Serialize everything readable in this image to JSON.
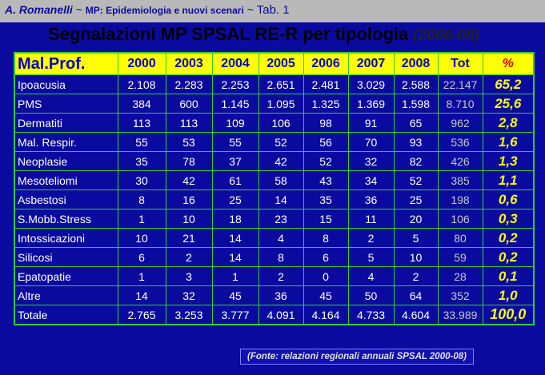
{
  "header": {
    "author": "A. Romanelli",
    "sep1": " ~ ",
    "subtitle": "MP: Epidemiologia  e nuovi scenari",
    "sep2": " ~ ",
    "tab": "Tab. 1"
  },
  "title": {
    "main": "Segnalazioni MP SPSAL RE-R per tipologia ",
    "years": "(2000-08)"
  },
  "table": {
    "headers": [
      "Mal.Prof.",
      "2000",
      "2003",
      "2004",
      "2005",
      "2006",
      "2007",
      "2008",
      "Tot",
      "%"
    ],
    "rows": [
      {
        "label": "Ipoacusia",
        "values": [
          "2.108",
          "2.283",
          "2.253",
          "2.651",
          "2.481",
          "3.029",
          "2.588"
        ],
        "tot": "22.147",
        "pct": "65,2"
      },
      {
        "label": "PMS",
        "values": [
          "384",
          "600",
          "1.145",
          "1.095",
          "1.325",
          "1.369",
          "1.598"
        ],
        "tot": "8.710",
        "pct": "25,6"
      },
      {
        "label": "Dermatiti",
        "values": [
          "113",
          "113",
          "109",
          "106",
          "98",
          "91",
          "65"
        ],
        "tot": "962",
        "pct": "2,8"
      },
      {
        "label": "Mal. Respir.",
        "values": [
          "55",
          "53",
          "55",
          "52",
          "56",
          "70",
          "93"
        ],
        "tot": "536",
        "pct": "1,6"
      },
      {
        "label": "Neoplasie",
        "values": [
          "35",
          "78",
          "37",
          "42",
          "52",
          "32",
          "82"
        ],
        "tot": "426",
        "pct": "1,3"
      },
      {
        "label": "Mesoteliomi",
        "values": [
          "30",
          "42",
          "61",
          "58",
          "43",
          "34",
          "52"
        ],
        "tot": "385",
        "pct": "1,1"
      },
      {
        "label": "Asbestosi",
        "values": [
          "8",
          "16",
          "25",
          "14",
          "35",
          "36",
          "25"
        ],
        "tot": "198",
        "pct": "0,6"
      },
      {
        "label": "S.Mobb.Stress",
        "values": [
          "1",
          "10",
          "18",
          "23",
          "15",
          "11",
          "20"
        ],
        "tot": "106",
        "pct": "0,3"
      },
      {
        "label": "Intossicazioni",
        "values": [
          "10",
          "21",
          "14",
          "4",
          "8",
          "2",
          "5"
        ],
        "tot": "80",
        "pct": "0,2"
      },
      {
        "label": "Silicosi",
        "values": [
          "6",
          "2",
          "14",
          "8",
          "6",
          "5",
          "10"
        ],
        "tot": "59",
        "pct": "0,2"
      },
      {
        "label": "Epatopatie",
        "values": [
          "1",
          "3",
          "1",
          "2",
          "0",
          "4",
          "2"
        ],
        "tot": "28",
        "pct": "0,1"
      },
      {
        "label": "Altre",
        "values": [
          "14",
          "32",
          "45",
          "36",
          "45",
          "50",
          "64"
        ],
        "tot": "352",
        "pct": "1,0"
      }
    ],
    "total": {
      "label": "Totale",
      "values": [
        "2.765",
        "3.253",
        "3.777",
        "4.091",
        "4.164",
        "4.733",
        "4.604"
      ],
      "tot": "33.989",
      "pct": "100,0"
    }
  },
  "source": "(Fonte: relazioni regionali annuali SPSAL 2000-08)",
  "colors": {
    "background": "#0a0a9e",
    "header_bar": "#b9b9b9",
    "table_header": "#ffff00",
    "grid": "#33cc33",
    "percent": "#ffff00"
  }
}
